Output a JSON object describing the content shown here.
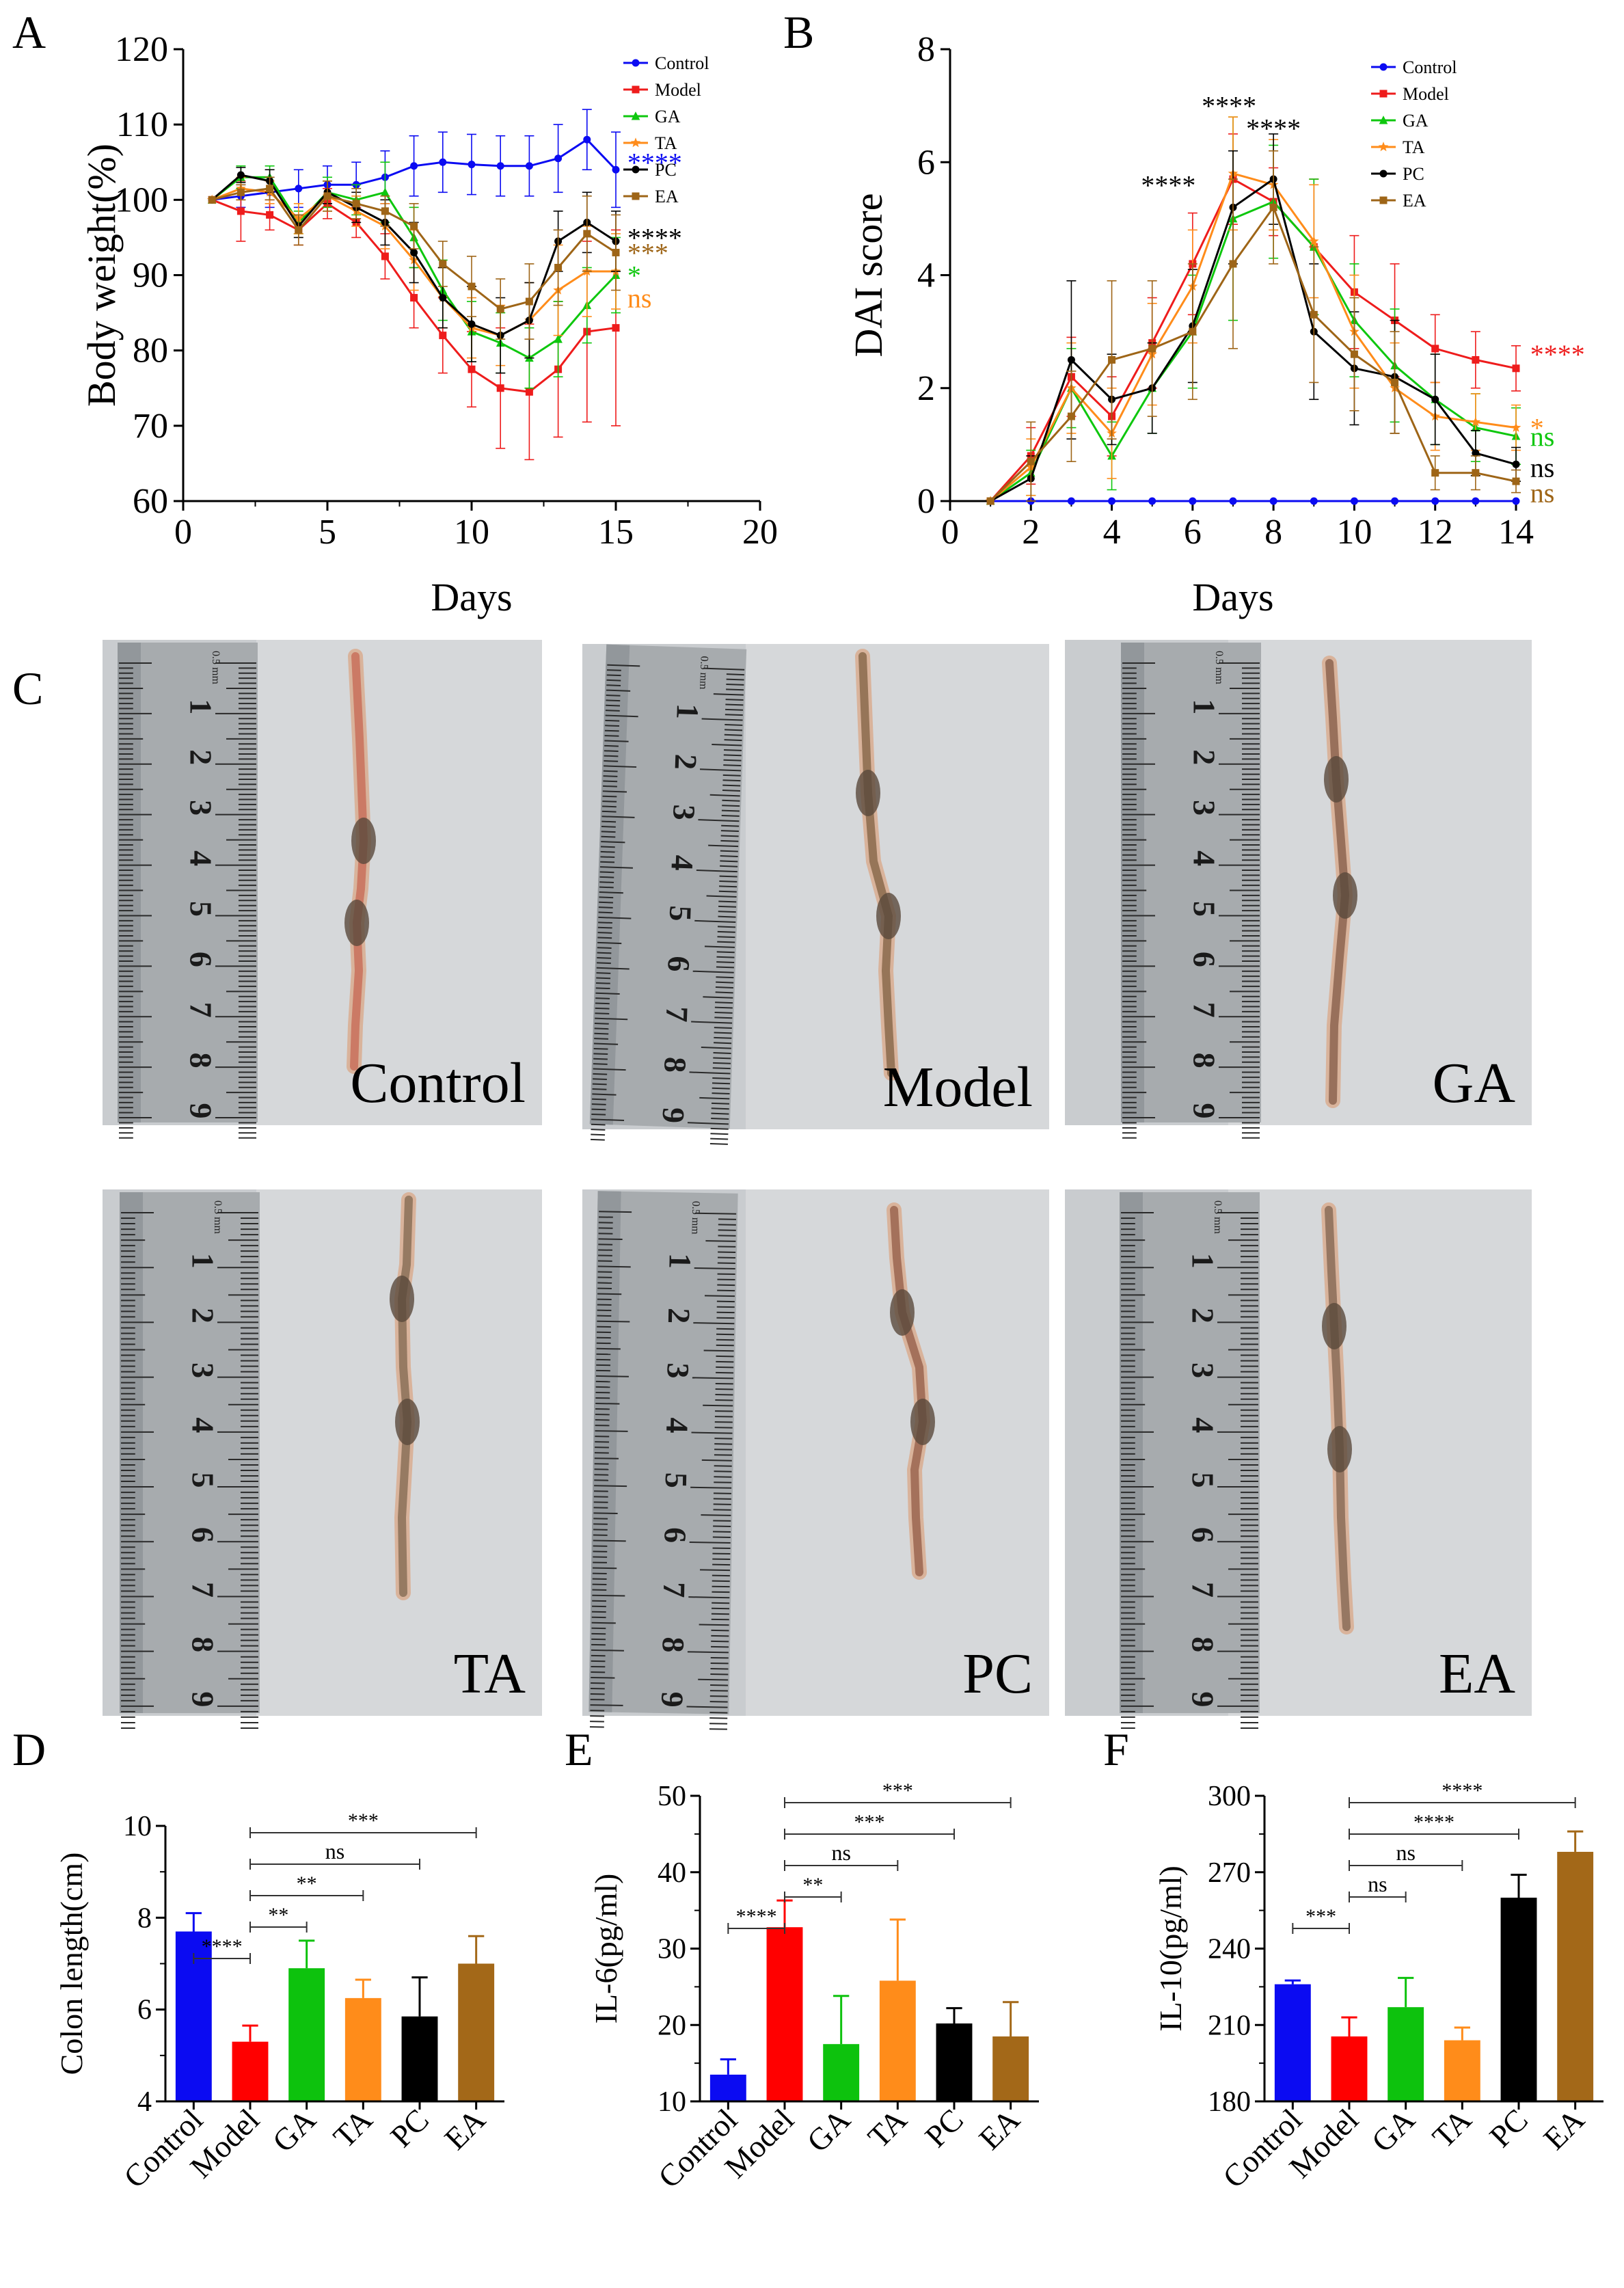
{
  "panels": [
    {
      "letter": "A",
      "chart_data": {
        "type": "line",
        "xlabel": "Days",
        "ylabel": "Body weight(%)",
        "xlim": [
          0,
          20
        ],
        "ylim": [
          60,
          120
        ],
        "xticks": [
          0,
          5,
          10,
          15,
          20
        ],
        "yticks": [
          60,
          70,
          80,
          90,
          100,
          110,
          120
        ],
        "series": [
          {
            "name": "Control",
            "color": "#0b0bf2",
            "marker": "circle",
            "x": [
              1,
              2,
              3,
              4,
              5,
              6,
              7,
              8,
              9,
              10,
              11,
              12,
              13,
              14,
              15
            ],
            "y": [
              100,
              100.5,
              101,
              101.5,
              102,
              102,
              103,
              104.5,
              105,
              104.7,
              104.5,
              104.5,
              105.5,
              108,
              104
            ],
            "err": [
              0,
              1.5,
              2,
              2.5,
              2.5,
              3,
              3.5,
              4,
              4,
              4,
              4,
              4,
              4.5,
              4,
              5
            ]
          },
          {
            "name": "Model",
            "color": "#ee1c1c",
            "marker": "square",
            "x": [
              1,
              2,
              3,
              4,
              5,
              6,
              7,
              8,
              9,
              10,
              11,
              12,
              13,
              14,
              15
            ],
            "y": [
              100,
              98.5,
              98,
              96,
              99.5,
              97,
              92.5,
              87,
              82,
              77.5,
              75,
              74.5,
              77.5,
              82.5,
              83
            ],
            "err": [
              0,
              4,
              2,
              2,
              2,
              2,
              3,
              4,
              5,
              5,
              8,
              9,
              9,
              12,
              13
            ]
          },
          {
            "name": "GA",
            "color": "#0ec70e",
            "marker": "triangle",
            "x": [
              1,
              2,
              3,
              4,
              5,
              6,
              7,
              8,
              9,
              10,
              11,
              12,
              13,
              14,
              15
            ],
            "y": [
              100,
              103,
              103,
              97,
              101,
              100,
              101,
              95,
              88,
              82.5,
              81,
              79,
              81.5,
              86,
              90
            ],
            "err": [
              0,
              1.5,
              1.5,
              1.5,
              2,
              2,
              4,
              4,
              4,
              4,
              4,
              4,
              5,
              5,
              5
            ]
          },
          {
            "name": "TA",
            "color": "#ff8c1a",
            "marker": "star",
            "x": [
              1,
              2,
              3,
              4,
              5,
              6,
              7,
              8,
              9,
              10,
              11,
              12,
              13,
              14,
              15
            ],
            "y": [
              100,
              101.5,
              101,
              97.5,
              100.5,
              98.5,
              96.5,
              92,
              87,
              83,
              82,
              84,
              88,
              90.5,
              90.5
            ],
            "err": [
              0,
              1.5,
              1.5,
              2,
              2,
              2,
              3,
              4,
              4,
              4,
              4,
              5,
              6,
              6,
              5
            ]
          },
          {
            "name": "PC",
            "color": "#000000",
            "marker": "circle",
            "x": [
              1,
              2,
              3,
              4,
              5,
              6,
              7,
              8,
              9,
              10,
              11,
              12,
              13,
              14,
              15
            ],
            "y": [
              100,
              103.3,
              102.5,
              96.5,
              101,
              99,
              97,
              93,
              87,
              83.5,
              82,
              84,
              94.5,
              97,
              94.5
            ],
            "err": [
              0,
              1,
              1.5,
              1.5,
              1.5,
              2,
              3,
              4,
              4,
              5,
              5,
              5,
              4,
              4,
              4
            ]
          },
          {
            "name": "EA",
            "color": "#9e6517",
            "marker": "square",
            "x": [
              1,
              2,
              3,
              4,
              5,
              6,
              7,
              8,
              9,
              10,
              11,
              12,
              13,
              14,
              15
            ],
            "y": [
              100,
              101,
              101.5,
              96,
              100.5,
              99.5,
              98.5,
              96.5,
              91.5,
              88.5,
              85.5,
              86.5,
              91,
              95.5,
              93
            ],
            "err": [
              0,
              1,
              1.5,
              2,
              2,
              2,
              2,
              3,
              3,
              4,
              4,
              5,
              5,
              5,
              5
            ]
          }
        ],
        "annotations": [
          {
            "text": "****",
            "series": "Control",
            "color": "#0b0bf2",
            "y": 105
          },
          {
            "text": "****",
            "series": "PC",
            "color": "#000000",
            "y": 95
          },
          {
            "text": "***",
            "series": "EA",
            "color": "#9e6517",
            "y": 93
          },
          {
            "text": "*",
            "series": "GA",
            "color": "#0ec70e",
            "y": 90
          },
          {
            "text": "ns",
            "series": "TA",
            "color": "#ff8c1a",
            "y": 87
          }
        ]
      }
    },
    {
      "letter": "B",
      "chart_data": {
        "type": "line",
        "xlabel": "Days",
        "ylabel": "DAI score",
        "xlim": [
          0,
          14
        ],
        "ylim": [
          0,
          8
        ],
        "xticks": [
          0,
          2,
          4,
          6,
          8,
          10,
          12,
          14
        ],
        "yticks": [
          0,
          2,
          4,
          6,
          8
        ],
        "series": [
          {
            "name": "Control",
            "color": "#0b0bf2",
            "marker": "circle",
            "x": [
              1,
              2,
              3,
              4,
              5,
              6,
              7,
              8,
              9,
              10,
              11,
              12,
              13,
              14
            ],
            "y": [
              0,
              0,
              0,
              0,
              0,
              0,
              0,
              0,
              0,
              0,
              0,
              0,
              0,
              0
            ],
            "err": [
              0,
              0,
              0,
              0,
              0,
              0,
              0,
              0,
              0,
              0,
              0,
              0,
              0,
              0
            ]
          },
          {
            "name": "Model",
            "color": "#ee1c1c",
            "marker": "square",
            "x": [
              1,
              2,
              3,
              4,
              5,
              6,
              7,
              8,
              9,
              10,
              11,
              12,
              13,
              14
            ],
            "y": [
              0,
              0.8,
              2.2,
              1.5,
              2.8,
              4.2,
              5.7,
              5.3,
              4.5,
              3.7,
              3.2,
              2.7,
              2.5,
              2.35
            ],
            "err": [
              0,
              0.5,
              0.7,
              0.7,
              0.8,
              0.9,
              0.8,
              0.6,
              1.2,
              1.0,
              1.0,
              0.6,
              0.5,
              0.4
            ]
          },
          {
            "name": "GA",
            "color": "#0ec70e",
            "marker": "triangle",
            "x": [
              1,
              2,
              3,
              4,
              5,
              6,
              7,
              8,
              9,
              10,
              11,
              12,
              13,
              14
            ],
            "y": [
              0,
              0.5,
              2.0,
              0.8,
              2.0,
              3.0,
              5.0,
              5.3,
              4.5,
              3.2,
              2.4,
              1.8,
              1.3,
              1.15
            ],
            "err": [
              0,
              0.4,
              0.7,
              0.6,
              0.8,
              1.0,
              1.8,
              1.0,
              1.2,
              1.0,
              1.0,
              0.8,
              0.6,
              0.5
            ]
          },
          {
            "name": "TA",
            "color": "#ff8c1a",
            "marker": "star",
            "x": [
              1,
              2,
              3,
              4,
              5,
              6,
              7,
              8,
              9,
              10,
              11,
              12,
              13,
              14
            ],
            "y": [
              0,
              0.6,
              2.0,
              1.2,
              2.6,
              3.8,
              5.8,
              5.6,
              4.6,
              3.0,
              2.0,
              1.5,
              1.4,
              1.3
            ],
            "err": [
              0,
              0.5,
              0.8,
              0.8,
              0.9,
              1.0,
              1.0,
              0.8,
              1.0,
              1.0,
              0.8,
              0.6,
              0.5,
              0.4
            ]
          },
          {
            "name": "PC",
            "color": "#000000",
            "marker": "circle",
            "x": [
              1,
              2,
              3,
              4,
              5,
              6,
              7,
              8,
              9,
              10,
              11,
              12,
              13,
              14
            ],
            "y": [
              0,
              0.4,
              2.5,
              1.8,
              2.0,
              3.1,
              5.2,
              5.7,
              3.0,
              2.35,
              2.2,
              1.8,
              0.85,
              0.65
            ],
            "err": [
              0,
              0.4,
              1.4,
              0.8,
              0.8,
              1.0,
              1.0,
              0.8,
              1.2,
              1.0,
              1.0,
              0.8,
              0.4,
              0.3
            ]
          },
          {
            "name": "EA",
            "color": "#9e6517",
            "marker": "square",
            "x": [
              1,
              2,
              3,
              4,
              5,
              6,
              7,
              8,
              9,
              10,
              11,
              12,
              13,
              14
            ],
            "y": [
              0,
              0.7,
              1.5,
              2.5,
              2.7,
              3.0,
              4.2,
              5.2,
              3.3,
              2.6,
              2.1,
              0.5,
              0.5,
              0.35
            ],
            "err": [
              0,
              0.7,
              0.8,
              1.4,
              1.2,
              1.2,
              1.5,
              1.0,
              1.2,
              1.0,
              0.9,
              0.3,
              0.3,
              0.2
            ]
          }
        ],
        "annotations": [
          {
            "text": "****",
            "x": 5.4,
            "y": 5.6,
            "color": "#000000"
          },
          {
            "text": "****",
            "x": 6.9,
            "y": 7.0,
            "color": "#000000"
          },
          {
            "text": "****",
            "x": 8.0,
            "y": 6.6,
            "color": "#000000"
          },
          {
            "text": "****",
            "series": "Model",
            "color": "#ee1c1c",
            "y": 2.6
          },
          {
            "text": "*",
            "series": "TA",
            "color": "#ff8c1a",
            "y": 1.3
          },
          {
            "text": "ns",
            "series": "GA",
            "color": "#0ec70e",
            "y": 1.15
          },
          {
            "text": "ns",
            "series": "PC",
            "color": "#000000",
            "y": 0.6
          },
          {
            "text": "ns",
            "series": "EA",
            "color": "#9e6517",
            "y": 0.15
          }
        ]
      }
    },
    {
      "letter": "D",
      "chart_data": {
        "type": "bar",
        "ylabel": "Colon length(cm)",
        "ylim": [
          4,
          10
        ],
        "yticks": [
          4,
          6,
          8,
          10
        ],
        "categories": [
          "Control",
          "Model",
          "GA",
          "TA",
          "PC",
          "EA"
        ],
        "values": [
          7.7,
          5.3,
          6.9,
          6.25,
          5.85,
          7.0
        ],
        "errors": [
          0.4,
          0.35,
          0.6,
          0.4,
          0.85,
          0.6
        ],
        "colors": [
          "#0b0bf2",
          "#ff0000",
          "#0dc20d",
          "#ff8c1a",
          "#000000",
          "#a36818"
        ],
        "comparisons": [
          {
            "from": 0,
            "to": 1,
            "label": "****"
          },
          {
            "from": 1,
            "to": 2,
            "label": "**"
          },
          {
            "from": 1,
            "to": 3,
            "label": "**"
          },
          {
            "from": 1,
            "to": 4,
            "label": "ns"
          },
          {
            "from": 1,
            "to": 5,
            "label": "***"
          }
        ]
      }
    },
    {
      "letter": "E",
      "chart_data": {
        "type": "bar",
        "ylabel": "IL-6(pg/ml)",
        "ylim": [
          10,
          50
        ],
        "yticks": [
          10,
          20,
          30,
          40,
          50
        ],
        "categories": [
          "Control",
          "Model",
          "GA",
          "TA",
          "PC",
          "EA"
        ],
        "values": [
          13.5,
          32.8,
          17.5,
          25.8,
          20.2,
          18.5
        ],
        "errors": [
          2.0,
          3.5,
          6.3,
          8.0,
          2.0,
          4.5
        ],
        "colors": [
          "#0b0bf2",
          "#ff0000",
          "#0dc20d",
          "#ff8c1a",
          "#000000",
          "#a36818"
        ],
        "comparisons": [
          {
            "from": 0,
            "to": 1,
            "label": "****"
          },
          {
            "from": 1,
            "to": 2,
            "label": "**"
          },
          {
            "from": 1,
            "to": 3,
            "label": "ns"
          },
          {
            "from": 1,
            "to": 4,
            "label": "***"
          },
          {
            "from": 1,
            "to": 5,
            "label": "***"
          }
        ]
      }
    },
    {
      "letter": "F",
      "chart_data": {
        "type": "bar",
        "ylabel": "IL-10(pg/ml)",
        "ylim": [
          180,
          300
        ],
        "yticks": [
          180,
          210,
          240,
          270,
          300
        ],
        "categories": [
          "Control",
          "Model",
          "GA",
          "TA",
          "PC",
          "EA"
        ],
        "values": [
          226,
          205.5,
          217,
          204,
          260,
          278
        ],
        "errors": [
          1.5,
          7.5,
          11.5,
          5,
          9,
          8
        ],
        "colors": [
          "#0b0bf2",
          "#ff0000",
          "#0dc20d",
          "#ff8c1a",
          "#000000",
          "#a36818"
        ],
        "comparisons": [
          {
            "from": 0,
            "to": 1,
            "label": "***"
          },
          {
            "from": 1,
            "to": 2,
            "label": "ns"
          },
          {
            "from": 1,
            "to": 3,
            "label": "ns"
          },
          {
            "from": 1,
            "to": 4,
            "label": "****"
          },
          {
            "from": 1,
            "to": 5,
            "label": "****"
          }
        ]
      }
    }
  ],
  "photo_panel": {
    "letter": "C",
    "unit_label": "0.5 mm",
    "ruler_numbers": [
      "1",
      "2",
      "3",
      "4",
      "5",
      "6",
      "7",
      "8",
      "9"
    ],
    "photos": [
      {
        "label": "Control",
        "tissue_color": "#c8705c"
      },
      {
        "label": "Model",
        "tissue_color": "#8a6a4c"
      },
      {
        "label": "GA",
        "tissue_color": "#8c6450"
      },
      {
        "label": "TA",
        "tissue_color": "#8a7058"
      },
      {
        "label": "PC",
        "tissue_color": "#9a6550"
      },
      {
        "label": "EA",
        "tissue_color": "#8a6c58"
      }
    ]
  }
}
